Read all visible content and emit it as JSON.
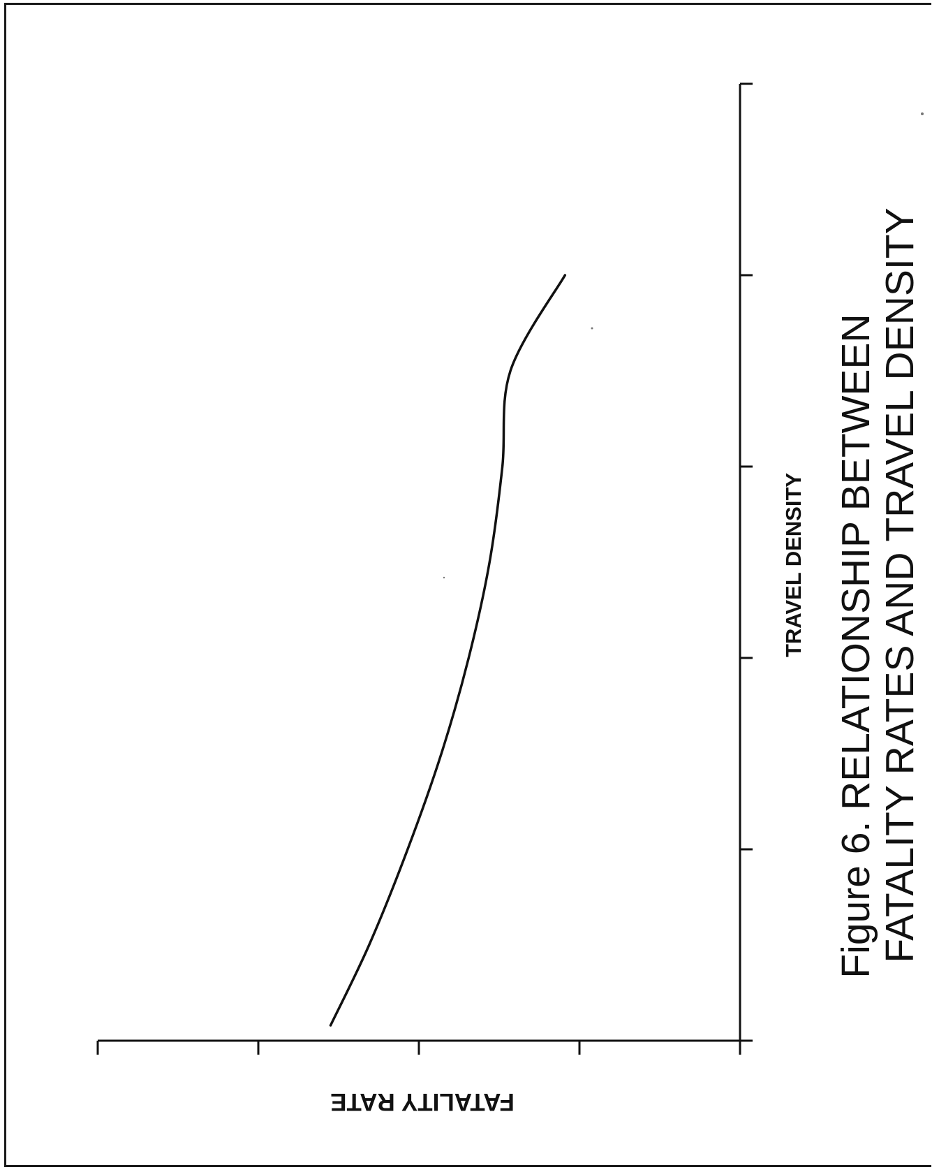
{
  "chart_data": {
    "type": "line",
    "title_line1": "Figure 6.  RELATIONSHIP BETWEEN",
    "title_line2": "FATALITY RATES AND TRAVEL DENSITY",
    "xlabel": "TRAVEL DENSITY",
    "ylabel": "FATALITY RATE",
    "xlim": [
      0,
      5
    ],
    "ylim": [
      0,
      4
    ],
    "x_ticks": [
      0,
      1,
      2,
      3,
      4,
      5
    ],
    "y_ticks": [
      0,
      1,
      2,
      3,
      4
    ],
    "grid": false,
    "series": [
      {
        "x": [
          0.08,
          0.5,
          1.0,
          1.5,
          2.0,
          2.5,
          3.0,
          3.5,
          4.0
        ],
        "y": [
          2.55,
          2.31,
          2.07,
          1.86,
          1.69,
          1.56,
          1.48,
          1.43,
          1.09
        ],
        "color": "#111111"
      }
    ]
  }
}
